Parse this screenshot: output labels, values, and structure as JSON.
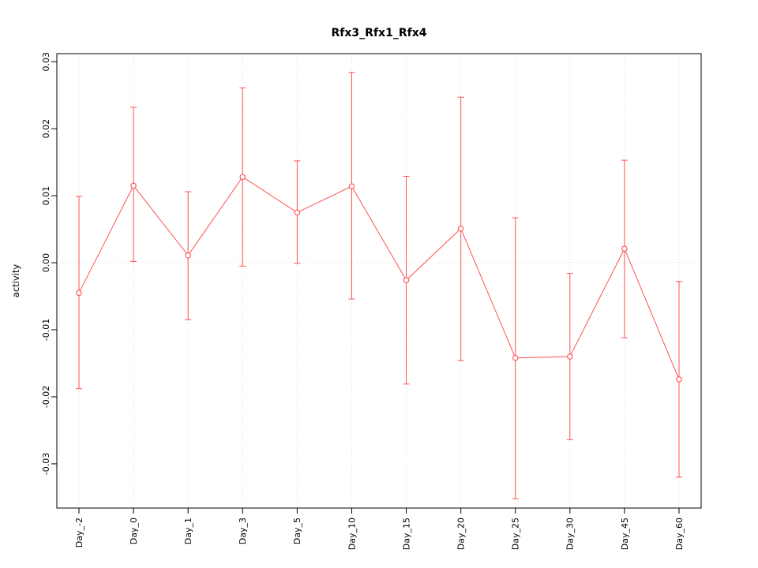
{
  "chart_data": {
    "type": "line",
    "title": "Rfx3_Rfx1_Rfx4",
    "xlabel": "",
    "ylabel": "activity",
    "categories": [
      "Day_-2",
      "Day_0",
      "Day_1",
      "Day_3",
      "Day_5",
      "Day_10",
      "Day_15",
      "Day_20",
      "Day_25",
      "Day_30",
      "Day_45",
      "Day_60"
    ],
    "series": [
      {
        "name": "activity",
        "means": [
          -0.0045,
          0.0115,
          0.0011,
          0.0128,
          0.0075,
          0.0114,
          -0.0026,
          0.0051,
          -0.0142,
          -0.014,
          0.0021,
          -0.0174
        ],
        "upper": [
          0.0099,
          0.0232,
          0.0106,
          0.0261,
          0.0152,
          0.0284,
          0.0129,
          0.0247,
          0.0067,
          -0.0016,
          0.0153,
          -0.0028
        ],
        "lower": [
          -0.0188,
          0.0002,
          -0.0085,
          -0.0005,
          -0.0001,
          -0.0054,
          -0.0181,
          -0.0146,
          -0.0352,
          -0.0264,
          -0.0112,
          -0.032
        ]
      }
    ],
    "yticks": [
      -0.03,
      -0.02,
      -0.01,
      0.0,
      0.01,
      0.02,
      0.03
    ],
    "ylim": [
      -0.0366,
      0.0312
    ],
    "grid": {
      "vertical_dotted_per_category": true,
      "zero_line_dotted": true,
      "horizontal_gridlines": false
    },
    "legend": null,
    "marker": "open-circle",
    "error_bars": true,
    "colors": {
      "series": "#ff5050",
      "grid": "#dadada",
      "zero_line": "#e2dada",
      "axis": "#000000",
      "background": "#ffffff"
    }
  }
}
